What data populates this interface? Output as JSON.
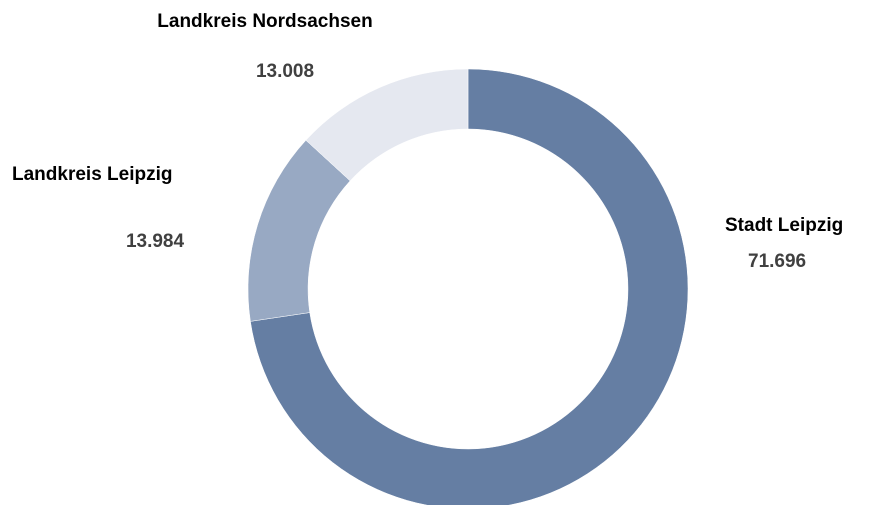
{
  "chart_data": {
    "type": "donut",
    "categories": [
      "Stadt Leipzig",
      "Landkreis Leipzig",
      "Landkreis Nordsachsen"
    ],
    "values": [
      71696,
      13984,
      13008
    ],
    "value_labels": [
      "71.696",
      "13.984",
      "13.008"
    ],
    "colors": [
      "#657ea3",
      "#98a9c3",
      "#e5e8f0"
    ]
  }
}
